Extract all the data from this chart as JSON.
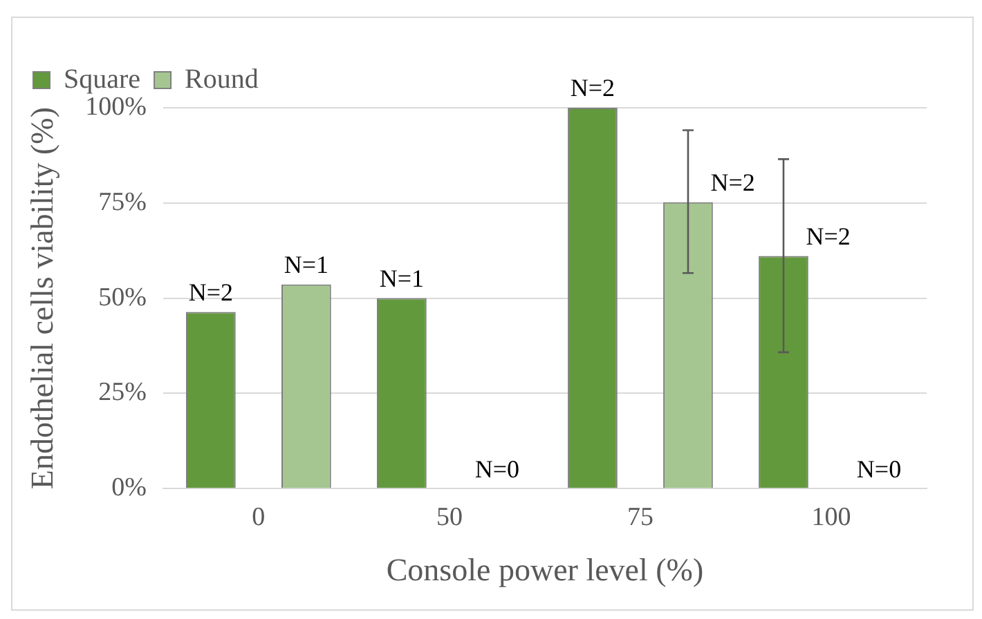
{
  "chart_data": {
    "type": "bar",
    "xlabel": "Console power level (%)",
    "ylabel": "Endothelial cells viability (%)",
    "categories": [
      "0",
      "50",
      "75",
      "100"
    ],
    "series": [
      {
        "name": "Square",
        "color": "#63993d",
        "values": [
          46.4,
          50.0,
          100,
          61.1
        ],
        "errors": [
          null,
          null,
          null,
          [
            35.8,
            86.5
          ]
        ]
      },
      {
        "name": "Round",
        "color": "#a5c690",
        "values": [
          53.6,
          0,
          75.2,
          0
        ],
        "errors": [
          null,
          null,
          [
            56.6,
            94.1
          ],
          null
        ]
      }
    ],
    "annotations": [
      "N=2",
      "N=1",
      "N=1",
      "N=0",
      "N=2",
      "N=2",
      "N=2",
      "N=0"
    ],
    "ylim": [
      0,
      100
    ],
    "yticks": [
      {
        "value": 0,
        "label": "0%"
      },
      {
        "value": 25,
        "label": "25%"
      },
      {
        "value": 50,
        "label": "50%"
      },
      {
        "value": 75,
        "label": "75%"
      },
      {
        "value": 100,
        "label": "100%"
      }
    ],
    "grid": "y",
    "legend": "top left"
  }
}
